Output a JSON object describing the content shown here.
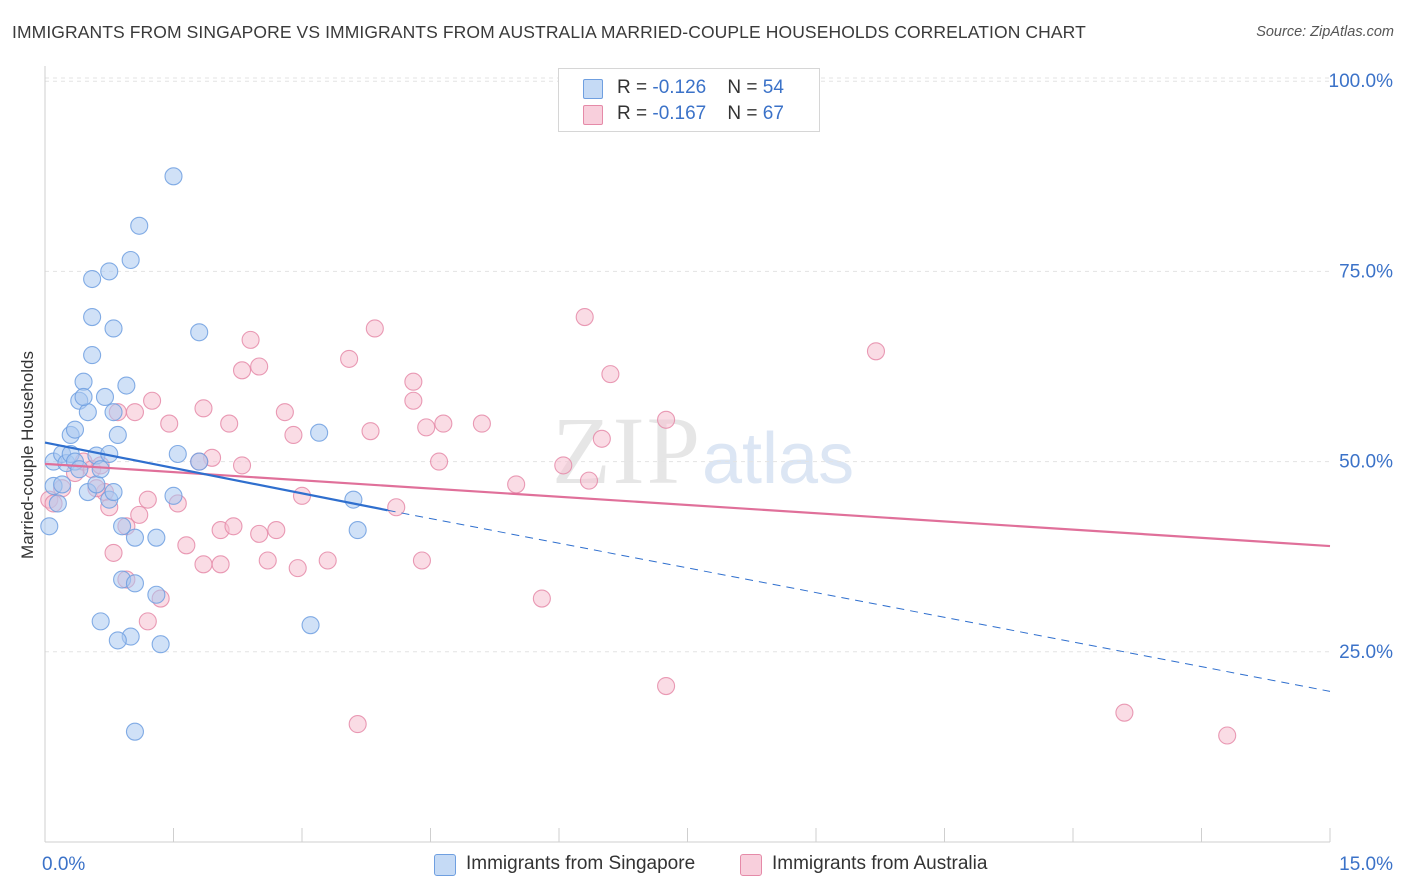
{
  "title": "IMMIGRANTS FROM SINGAPORE VS IMMIGRANTS FROM AUSTRALIA MARRIED-COUPLE HOUSEHOLDS CORRELATION CHART",
  "source": "Source: ZipAtlas.com",
  "watermark": {
    "zip": "ZIP",
    "atlas": "atlas"
  },
  "legend": {
    "singapore": {
      "r_label": "R = ",
      "r_value": "-0.126",
      "n_label": "N = ",
      "n_value": "54"
    },
    "australia": {
      "r_label": "R = ",
      "r_value": "-0.167",
      "n_label": "N = ",
      "n_value": "67"
    }
  },
  "colors": {
    "singapore_fill": "#aac8f0",
    "singapore_stroke": "#6f9fe0",
    "singapore_line": "#2f6fce",
    "australia_fill": "#f5bfd0",
    "australia_stroke": "#e58aa8",
    "australia_line": "#e0709a",
    "grid": "#e3e3e3",
    "axis_text": "#3b72c8"
  },
  "chart_data": {
    "type": "scatter",
    "title": "IMMIGRANTS FROM SINGAPORE VS IMMIGRANTS FROM AUSTRALIA MARRIED-COUPLE HOUSEHOLDS CORRELATION CHART",
    "xlabel": "",
    "ylabel": "Married-couple Households",
    "xlim": [
      0,
      15
    ],
    "ylim": [
      0,
      102
    ],
    "x_tick_labels": [
      "0.0%",
      "15.0%"
    ],
    "y_ticks": [
      25,
      50,
      75,
      100
    ],
    "y_tick_labels": [
      "25.0%",
      "50.0%",
      "75.0%",
      "100.0%"
    ],
    "grid": true,
    "series": [
      {
        "name": "Immigrants from Singapore",
        "points": [
          [
            0.05,
            41.5
          ],
          [
            0.1,
            46.8
          ],
          [
            0.1,
            50.0
          ],
          [
            0.15,
            44.5
          ],
          [
            0.2,
            51.0
          ],
          [
            0.2,
            47.0
          ],
          [
            0.25,
            49.8
          ],
          [
            0.3,
            51.0
          ],
          [
            0.3,
            53.5
          ],
          [
            0.35,
            54.2
          ],
          [
            0.4,
            58.0
          ],
          [
            0.35,
            50.0
          ],
          [
            0.4,
            49.0
          ],
          [
            0.45,
            60.5
          ],
          [
            0.5,
            56.5
          ],
          [
            0.5,
            46.0
          ],
          [
            0.45,
            58.5
          ],
          [
            0.6,
            47.0
          ],
          [
            0.6,
            50.8
          ],
          [
            0.65,
            49.0
          ],
          [
            0.7,
            58.5
          ],
          [
            0.75,
            45.0
          ],
          [
            0.8,
            56.5
          ],
          [
            0.8,
            46.0
          ],
          [
            0.85,
            53.5
          ],
          [
            0.55,
            69.0
          ],
          [
            0.55,
            64.0
          ],
          [
            0.55,
            74.0
          ],
          [
            0.75,
            75.0
          ],
          [
            0.8,
            67.5
          ],
          [
            0.95,
            60.0
          ],
          [
            1.0,
            76.5
          ],
          [
            1.1,
            81.0
          ],
          [
            1.5,
            87.5
          ],
          [
            1.8,
            67.0
          ],
          [
            1.5,
            45.5
          ],
          [
            1.55,
            51.0
          ],
          [
            1.8,
            50.0
          ],
          [
            0.9,
            41.5
          ],
          [
            1.05,
            40.0
          ],
          [
            1.3,
            40.0
          ],
          [
            0.9,
            34.5
          ],
          [
            1.05,
            34.0
          ],
          [
            1.3,
            32.5
          ],
          [
            1.35,
            26.0
          ],
          [
            1.0,
            27.0
          ],
          [
            0.65,
            29.0
          ],
          [
            0.85,
            26.5
          ],
          [
            1.05,
            14.5
          ],
          [
            3.2,
            53.8
          ],
          [
            3.6,
            45.0
          ],
          [
            3.65,
            41.0
          ],
          [
            3.1,
            28.5
          ],
          [
            0.75,
            51.0
          ]
        ]
      },
      {
        "name": "Immigrants from Australia",
        "points": [
          [
            0.05,
            45.0
          ],
          [
            0.1,
            44.5
          ],
          [
            0.2,
            46.5
          ],
          [
            0.35,
            48.5
          ],
          [
            0.45,
            50.0
          ],
          [
            0.55,
            49.0
          ],
          [
            0.7,
            46.0
          ],
          [
            0.85,
            56.5
          ],
          [
            0.75,
            44.0
          ],
          [
            0.8,
            38.0
          ],
          [
            0.95,
            41.5
          ],
          [
            1.1,
            43.0
          ],
          [
            1.2,
            45.0
          ],
          [
            1.25,
            58.0
          ],
          [
            1.45,
            55.0
          ],
          [
            1.55,
            44.5
          ],
          [
            1.65,
            39.0
          ],
          [
            1.85,
            57.0
          ],
          [
            1.85,
            36.5
          ],
          [
            1.95,
            50.5
          ],
          [
            2.05,
            41.0
          ],
          [
            2.15,
            55.0
          ],
          [
            2.2,
            41.5
          ],
          [
            2.3,
            49.5
          ],
          [
            2.3,
            62.0
          ],
          [
            2.4,
            66.0
          ],
          [
            2.5,
            40.5
          ],
          [
            2.5,
            62.5
          ],
          [
            2.6,
            37.0
          ],
          [
            2.7,
            41.0
          ],
          [
            2.8,
            56.5
          ],
          [
            2.9,
            53.5
          ],
          [
            2.95,
            36.0
          ],
          [
            3.0,
            45.5
          ],
          [
            3.3,
            37.0
          ],
          [
            3.55,
            63.5
          ],
          [
            3.8,
            54.0
          ],
          [
            3.85,
            67.5
          ],
          [
            4.3,
            60.5
          ],
          [
            4.3,
            58.0
          ],
          [
            4.45,
            54.5
          ],
          [
            4.65,
            55.0
          ],
          [
            4.6,
            50.0
          ],
          [
            5.1,
            55.0
          ],
          [
            5.5,
            47.0
          ],
          [
            5.8,
            32.0
          ],
          [
            6.05,
            49.5
          ],
          [
            6.35,
            47.5
          ],
          [
            6.5,
            53.0
          ],
          [
            6.6,
            61.5
          ],
          [
            7.25,
            55.5
          ],
          [
            6.3,
            69.0
          ],
          [
            4.1,
            44.0
          ],
          [
            4.4,
            37.0
          ],
          [
            3.65,
            15.5
          ],
          [
            7.25,
            20.5
          ],
          [
            9.7,
            64.5
          ],
          [
            12.6,
            17.0
          ],
          [
            13.8,
            14.0
          ],
          [
            0.95,
            34.5
          ],
          [
            1.35,
            32.0
          ],
          [
            1.2,
            29.0
          ],
          [
            1.05,
            56.5
          ],
          [
            0.65,
            49.5
          ],
          [
            0.6,
            46.5
          ],
          [
            1.8,
            50.0
          ],
          [
            2.05,
            36.5
          ]
        ]
      }
    ],
    "trendlines": [
      {
        "series": "Immigrants from Singapore",
        "solid": [
          [
            0,
            52.5
          ],
          [
            4.0,
            43.6
          ]
        ],
        "dashed": [
          [
            4.0,
            43.6
          ],
          [
            15.0,
            19.8
          ]
        ]
      },
      {
        "series": "Immigrants from Australia",
        "solid": [
          [
            0,
            49.7
          ],
          [
            15.0,
            38.9
          ]
        ]
      }
    ]
  }
}
